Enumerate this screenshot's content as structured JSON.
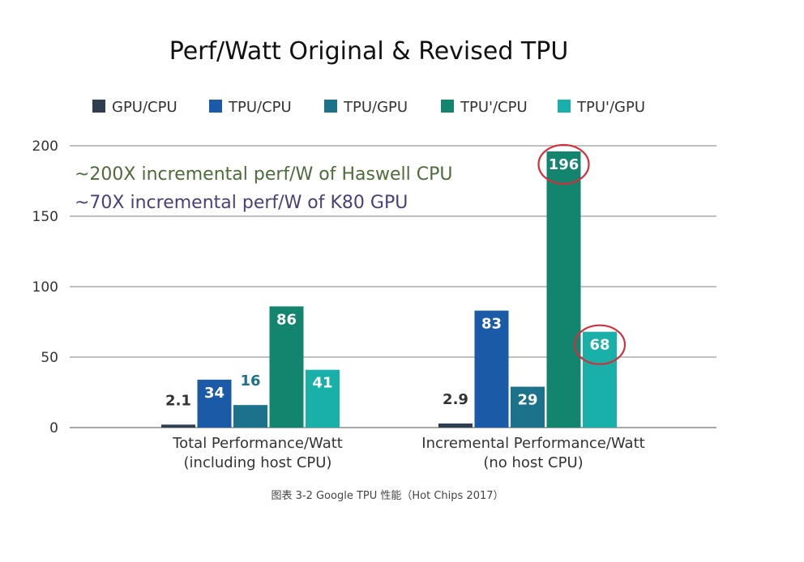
{
  "chart_data": {
    "type": "bar",
    "title": "Perf/Watt Original & Revised TPU",
    "categories": [
      [
        "Total Performance/Watt",
        "(including host CPU)"
      ],
      [
        "Incremental Performance/Watt",
        "(no host CPU)"
      ]
    ],
    "series": [
      {
        "name": "GPU/CPU",
        "color": "#2e3e4e",
        "values": [
          2.1,
          2.9
        ],
        "labels": [
          "2.1",
          "2.9"
        ]
      },
      {
        "name": "TPU/CPU",
        "color": "#1b5aa6",
        "values": [
          34,
          83
        ],
        "labels": [
          "34",
          "83"
        ]
      },
      {
        "name": "TPU/GPU",
        "color": "#1c728a",
        "values": [
          16,
          29
        ],
        "labels": [
          "16",
          "29"
        ]
      },
      {
        "name": "TPU'/CPU",
        "color": "#13856f",
        "values": [
          86,
          196
        ],
        "labels": [
          "86",
          "196"
        ]
      },
      {
        "name": "TPU'/GPU",
        "color": "#19b0aa",
        "values": [
          41,
          68
        ],
        "labels": [
          "41",
          "68"
        ]
      }
    ],
    "ylim": [
      0,
      200
    ],
    "yticks": [
      0,
      50,
      100,
      150,
      200
    ],
    "grid": true,
    "legend": "top",
    "annotations": [
      "~200X incremental perf/W of Haswell CPU",
      "~70X incremental perf/W of K80 GPU"
    ],
    "highlighted": [
      "196",
      "68"
    ],
    "highlight_color": "#d32f3a"
  },
  "caption": "图表 3-2 Google TPU 性能（Hot Chips 2017）"
}
